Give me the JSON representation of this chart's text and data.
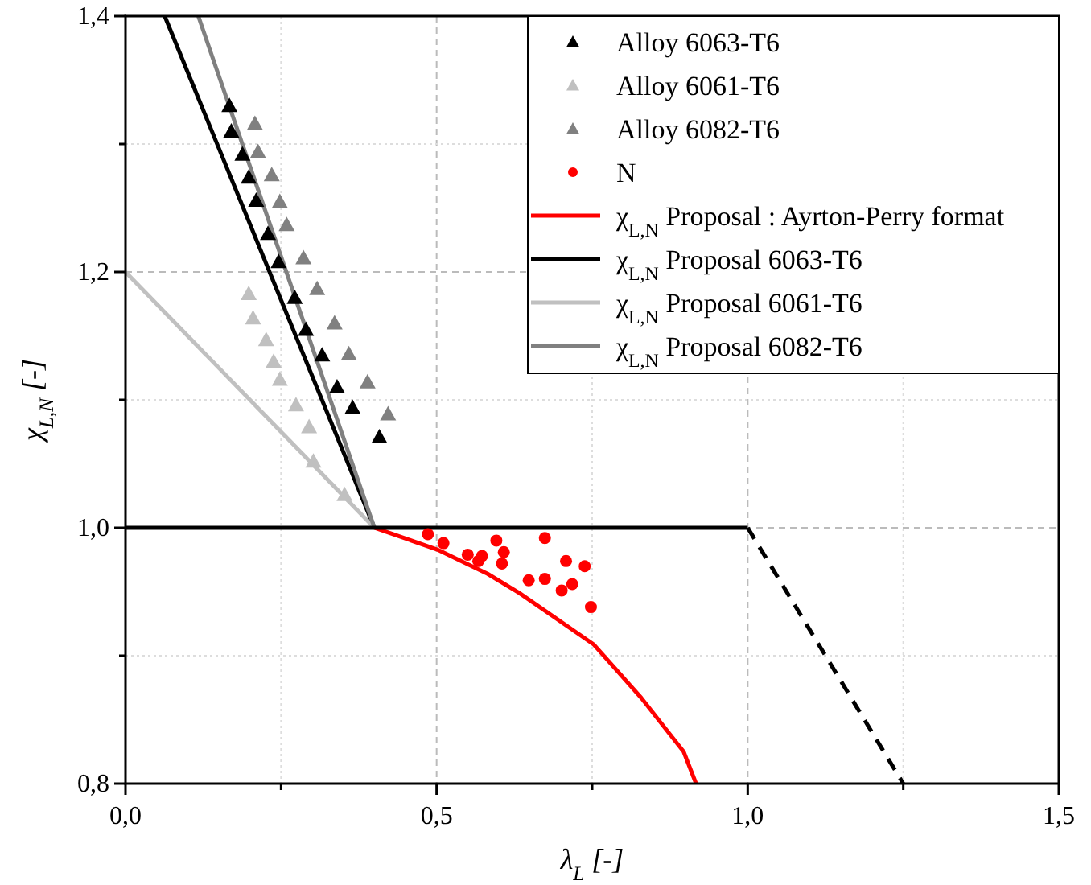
{
  "chart_data": {
    "type": "scatter",
    "xlabel": "λ$_{L}$ [-]",
    "ylabel": "χ$_{L,N}$ [-]",
    "xlim": [
      0,
      1.5
    ],
    "ylim": [
      0.8,
      1.4
    ],
    "xticks": [
      {
        "value": 0,
        "label": "0,0"
      },
      {
        "value": 0.25,
        "label": null
      },
      {
        "value": 0.5,
        "label": "0,5"
      },
      {
        "value": 0.75,
        "label": null
      },
      {
        "value": 1,
        "label": "1,0"
      },
      {
        "value": 1.25,
        "label": null
      },
      {
        "value": 1.5,
        "label": "1,5"
      }
    ],
    "yticks": [
      {
        "value": 0.8,
        "label": "0,8"
      },
      {
        "value": 0.9,
        "label": null
      },
      {
        "value": 1,
        "label": "1,0"
      },
      {
        "value": 1.1,
        "label": null
      },
      {
        "value": 1.2,
        "label": "1,2"
      },
      {
        "value": 1.3,
        "label": null
      },
      {
        "value": 1.4,
        "label": "1,4"
      }
    ],
    "grid": true,
    "legend": "top right",
    "series": [
      {
        "name": "Alloy 6063-T6",
        "marker": "triangle",
        "color": "#000000",
        "x": [
          0.167,
          0.17,
          0.188,
          0.198,
          0.21,
          0.229,
          0.246,
          0.272,
          0.29,
          0.316,
          0.34,
          0.365,
          0.408
        ],
        "values": [
          1.33,
          1.31,
          1.292,
          1.274,
          1.256,
          1.23,
          1.208,
          1.18,
          1.155,
          1.135,
          1.11,
          1.094,
          1.071
        ]
      },
      {
        "name": "Alloy 6061-T6",
        "marker": "triangle",
        "color": "#c0c0c0",
        "x": [
          0.198,
          0.205,
          0.226,
          0.238,
          0.248,
          0.274,
          0.295,
          0.302,
          0.352
        ],
        "values": [
          1.183,
          1.164,
          1.147,
          1.13,
          1.116,
          1.096,
          1.079,
          1.052,
          1.026
        ]
      },
      {
        "name": "Alloy 6082-T6",
        "marker": "triangle",
        "color": "#808080",
        "x": [
          0.208,
          0.213,
          0.235,
          0.248,
          0.259,
          0.286,
          0.308,
          0.336,
          0.359,
          0.389,
          0.422
        ],
        "values": [
          1.316,
          1.294,
          1.276,
          1.255,
          1.237,
          1.211,
          1.187,
          1.16,
          1.136,
          1.114,
          1.089
        ]
      },
      {
        "name": "N",
        "marker": "circle",
        "color": "#ff0000",
        "x": [
          0.486,
          0.511,
          0.55,
          0.567,
          0.573,
          0.596,
          0.608,
          0.605,
          0.648,
          0.674,
          0.674,
          0.708,
          0.701,
          0.718,
          0.738,
          0.748
        ],
        "values": [
          0.995,
          0.988,
          0.979,
          0.974,
          0.978,
          0.99,
          0.981,
          0.972,
          0.959,
          0.992,
          0.96,
          0.974,
          0.951,
          0.956,
          0.97,
          0.938
        ]
      },
      {
        "name": "χ$_{L,N}$ Proposal : Ayrton-Perry format",
        "type": "line",
        "marker": "none",
        "color": "#ff0000",
        "x": [
          0.4,
          0.412,
          0.501,
          0.582,
          0.633,
          0.752,
          0.829,
          0.897,
          0.917
        ],
        "values": [
          1.0,
          0.998,
          0.983,
          0.964,
          0.949,
          0.909,
          0.867,
          0.825,
          0.8
        ]
      },
      {
        "name": "χ$_{L,N}$ Proposal 6063-T6",
        "type": "line",
        "marker": "none",
        "color": "#000000",
        "x": [
          0.063,
          0.4
        ],
        "values": [
          1.4,
          1.0
        ]
      },
      {
        "name": "χ$_{L,N}$ Proposal 6061-T6",
        "type": "line",
        "marker": "none",
        "color": "#c0c0c0",
        "x": [
          0,
          0.4
        ],
        "values": [
          1.2,
          1.0
        ]
      },
      {
        "name": "χ$_{L,N}$ Proposal 6082-T6",
        "type": "line",
        "marker": "none",
        "color": "#808080",
        "x": [
          0.117,
          0.4
        ],
        "values": [
          1.4,
          1.0
        ]
      },
      {
        "type": "line",
        "marker": "none",
        "line_style": "solid",
        "color": "#000000",
        "x": [
          0,
          1.0
        ],
        "values": [
          1.0,
          1.0
        ]
      },
      {
        "type": "line",
        "marker": "none",
        "line_style": "dashed",
        "color": "#000000",
        "x": [
          1.0,
          1.25
        ],
        "values": [
          1.0,
          0.8
        ]
      }
    ]
  }
}
